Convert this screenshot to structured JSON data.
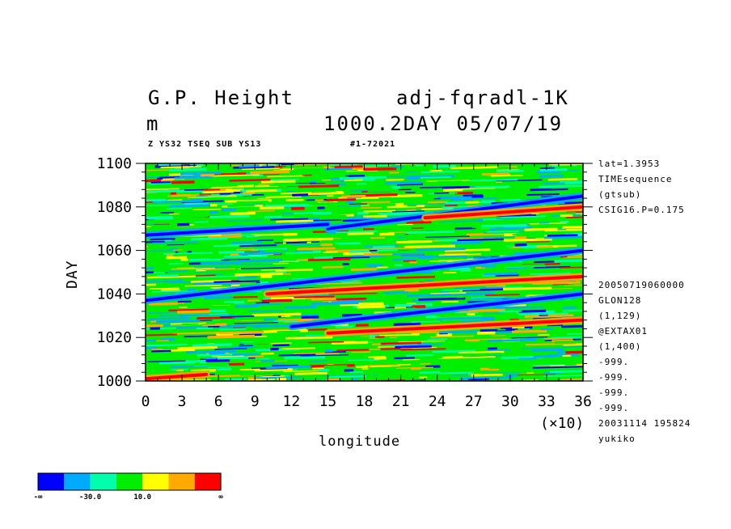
{
  "titles": {
    "variable": "G.P. Height",
    "experiment": "adj-fqradl-1K",
    "units": "m",
    "datetime": "1000.2DAY 05/07/19",
    "subtitle_left": "Z YS32 TSEQ SUB YS13",
    "subtitle_right": "#1-72021"
  },
  "right_info": {
    "top": [
      "lat=1.3953",
      "TIMEsequence",
      "(gtsub)",
      "CSIG16.P=0.175"
    ],
    "bottom": [
      "20050719060000",
      "GLON128",
      "(1,129)",
      "@EXTAX01",
      "(1,400)",
      "-999.",
      "-999.",
      "-999.",
      "-999.",
      "20031114 195824",
      "yukiko"
    ]
  },
  "axes": {
    "xlabel": "longitude",
    "ylabel": "DAY",
    "x_multiplier": "(×10)"
  },
  "colors": [
    "#0000ff",
    "#00aaff",
    "#00ffaa",
    "#00ee00",
    "#ffff00",
    "#ffaa00",
    "#ff0000"
  ],
  "colorbar_labels": [
    "-∞",
    "-30.0",
    "10.0",
    "∞"
  ],
  "chart_data": {
    "type": "heatmap",
    "xlim": [
      0,
      36
    ],
    "ylim": [
      1000,
      1100
    ],
    "x_ticks": [
      0,
      3,
      6,
      9,
      12,
      15,
      18,
      21,
      24,
      27,
      30,
      33,
      36
    ],
    "y_ticks": [
      1000,
      1020,
      1040,
      1060,
      1080,
      1100
    ],
    "color_levels": [
      -50,
      -30,
      -10,
      10,
      30,
      50
    ],
    "features": [
      {
        "level": "low",
        "start": [
          0,
          1037
        ],
        "end": [
          36,
          1060
        ]
      },
      {
        "level": "low",
        "start": [
          12,
          1025
        ],
        "end": [
          36,
          1040
        ]
      },
      {
        "level": "low",
        "start": [
          15,
          1070
        ],
        "end": [
          36,
          1085
        ]
      },
      {
        "level": "low",
        "start": [
          0,
          1067
        ],
        "end": [
          15,
          1072
        ]
      },
      {
        "level": "high",
        "start": [
          0,
          1001
        ],
        "end": [
          5,
          1003
        ]
      },
      {
        "level": "high",
        "start": [
          10,
          1040
        ],
        "end": [
          36,
          1048
        ]
      },
      {
        "level": "high",
        "start": [
          15,
          1022
        ],
        "end": [
          36,
          1028
        ]
      },
      {
        "level": "high",
        "start": [
          23,
          1075
        ],
        "end": [
          36,
          1080
        ]
      }
    ]
  }
}
